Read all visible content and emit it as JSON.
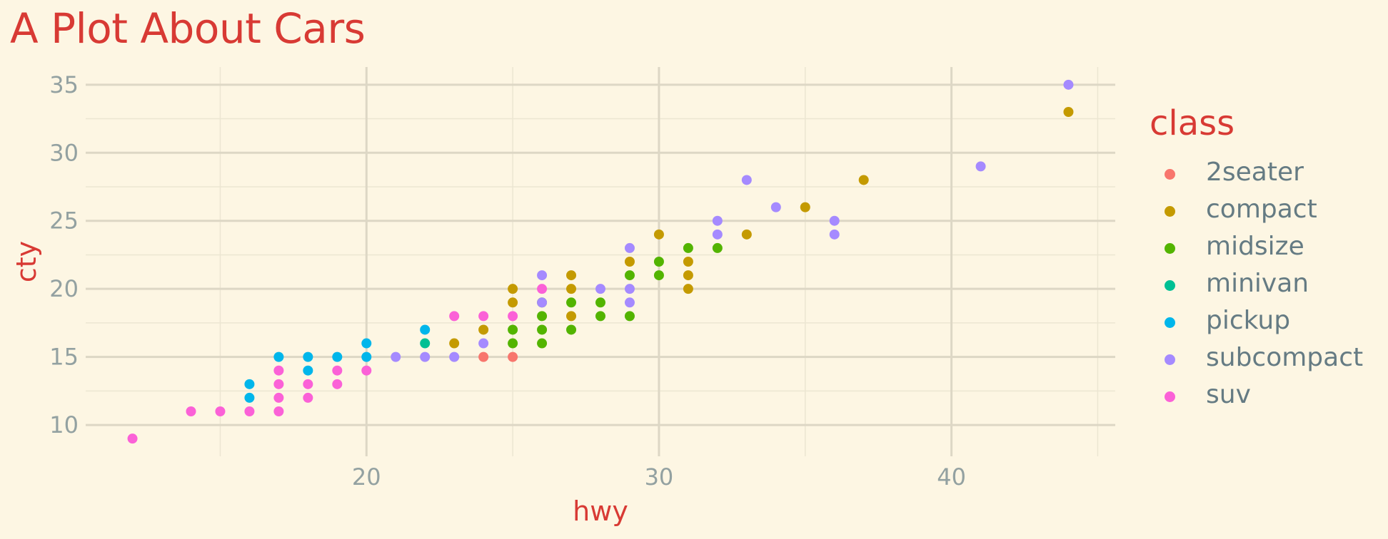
{
  "title": "A Plot About Cars",
  "chart_data": {
    "type": "scatter",
    "title": "A Plot About Cars",
    "xlabel": "hwy",
    "ylabel": "cty",
    "xlim": [
      10.4,
      45.6
    ],
    "ylim": [
      7.7,
      36.3
    ],
    "x_ticks": [
      20,
      30,
      40
    ],
    "y_ticks": [
      10,
      15,
      20,
      25,
      30,
      35
    ],
    "grid": true,
    "legend": {
      "title": "class",
      "position": "right",
      "entries": [
        "2seater",
        "compact",
        "midsize",
        "minivan",
        "pickup",
        "subcompact",
        "suv"
      ]
    },
    "colors": {
      "2seater": "#F8766D",
      "compact": "#C49A00",
      "midsize": "#53B400",
      "minivan": "#00C094",
      "pickup": "#00B6EB",
      "subcompact": "#A58AFF",
      "suv": "#FB61D7"
    },
    "series": [
      {
        "name": "2seater",
        "points": [
          [
            24,
            15
          ],
          [
            25,
            15
          ]
        ]
      },
      {
        "name": "compact",
        "points": [
          [
            44,
            33
          ],
          [
            37,
            28
          ],
          [
            35,
            26
          ],
          [
            30,
            24
          ],
          [
            33,
            24
          ],
          [
            29,
            22
          ],
          [
            31,
            22
          ],
          [
            27,
            21
          ],
          [
            31,
            21
          ],
          [
            25,
            20
          ],
          [
            27,
            20
          ],
          [
            31,
            20
          ],
          [
            25,
            19
          ],
          [
            27,
            18
          ],
          [
            24,
            17
          ],
          [
            23,
            16
          ]
        ]
      },
      {
        "name": "midsize",
        "points": [
          [
            31,
            23
          ],
          [
            32,
            23
          ],
          [
            30,
            22
          ],
          [
            29,
            21
          ],
          [
            30,
            21
          ],
          [
            26,
            19
          ],
          [
            27,
            19
          ],
          [
            28,
            19
          ],
          [
            26,
            18
          ],
          [
            28,
            18
          ],
          [
            29,
            18
          ],
          [
            25,
            17
          ],
          [
            26,
            17
          ],
          [
            27,
            17
          ],
          [
            25,
            16
          ],
          [
            26,
            16
          ]
        ]
      },
      {
        "name": "minivan",
        "points": [
          [
            22,
            16
          ]
        ]
      },
      {
        "name": "pickup",
        "points": [
          [
            22,
            17
          ],
          [
            20,
            16
          ],
          [
            17,
            15
          ],
          [
            18,
            15
          ],
          [
            19,
            15
          ],
          [
            20,
            15
          ],
          [
            18,
            14
          ],
          [
            16,
            13
          ],
          [
            16,
            12
          ]
        ]
      },
      {
        "name": "subcompact",
        "points": [
          [
            44,
            35
          ],
          [
            41,
            29
          ],
          [
            33,
            28
          ],
          [
            34,
            26
          ],
          [
            32,
            25
          ],
          [
            36,
            25
          ],
          [
            32,
            24
          ],
          [
            36,
            24
          ],
          [
            29,
            23
          ],
          [
            26,
            21
          ],
          [
            28,
            20
          ],
          [
            29,
            20
          ],
          [
            26,
            19
          ],
          [
            29,
            19
          ],
          [
            24,
            16
          ],
          [
            21,
            15
          ],
          [
            22,
            15
          ],
          [
            23,
            15
          ]
        ]
      },
      {
        "name": "suv",
        "points": [
          [
            23,
            18
          ],
          [
            24,
            18
          ],
          [
            25,
            18
          ],
          [
            26,
            20
          ],
          [
            20,
            14
          ],
          [
            17,
            14
          ],
          [
            19,
            14
          ],
          [
            17,
            13
          ],
          [
            18,
            13
          ],
          [
            19,
            13
          ],
          [
            17,
            12
          ],
          [
            18,
            12
          ],
          [
            14,
            11
          ],
          [
            15,
            11
          ],
          [
            16,
            11
          ],
          [
            17,
            11
          ],
          [
            12,
            9
          ]
        ]
      }
    ]
  }
}
